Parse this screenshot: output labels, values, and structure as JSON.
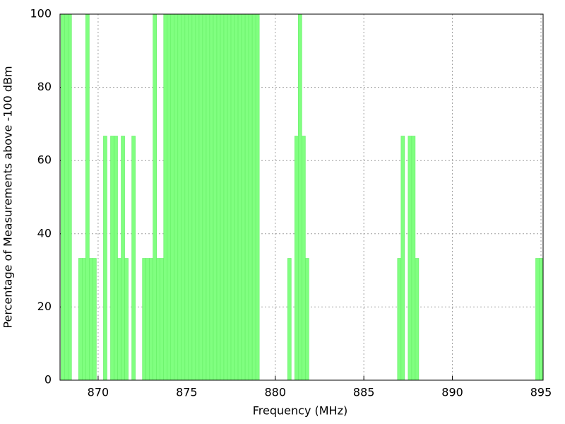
{
  "chart_data": {
    "type": "bar",
    "xlabel": "Frequency (MHz)",
    "ylabel": "Percentage of Measurements above -100 dBm",
    "x": [
      868.0,
      868.2,
      868.4,
      869.0,
      869.2,
      869.4,
      869.6,
      869.8,
      870.4,
      870.8,
      871.0,
      871.2,
      871.4,
      871.6,
      872.0,
      872.6,
      872.8,
      873.0,
      873.2,
      873.4,
      873.6,
      873.8,
      874.0,
      874.2,
      874.4,
      874.6,
      874.8,
      875.0,
      875.2,
      875.4,
      875.6,
      875.8,
      876.0,
      876.2,
      876.4,
      876.6,
      876.8,
      877.0,
      877.2,
      877.4,
      877.6,
      877.8,
      878.0,
      878.2,
      878.4,
      878.6,
      878.8,
      879.0,
      880.8,
      881.2,
      881.4,
      881.6,
      881.8,
      887.0,
      887.2,
      887.6,
      887.8,
      888.0,
      894.8,
      895.0
    ],
    "values": [
      100,
      100,
      100,
      33.3,
      33.3,
      100,
      33.3,
      33.3,
      66.7,
      66.7,
      66.7,
      33.3,
      66.7,
      33.3,
      66.7,
      33.3,
      33.3,
      33.3,
      100,
      33.3,
      33.3,
      100,
      100,
      100,
      100,
      100,
      100,
      100,
      100,
      100,
      100,
      100,
      100,
      100,
      100,
      100,
      100,
      100,
      100,
      100,
      100,
      100,
      100,
      100,
      100,
      100,
      100,
      100,
      33.3,
      66.7,
      100,
      66.7,
      33.3,
      33.3,
      66.7,
      66.7,
      66.7,
      33.3,
      33.3,
      33.3
    ],
    "color": "#80ff80",
    "xlim": [
      867.85,
      895.12
    ],
    "xticks": [
      870,
      875,
      880,
      885,
      890,
      895
    ],
    "ylim": [
      0,
      100
    ],
    "yticks": [
      0,
      20,
      40,
      60,
      80,
      100
    ],
    "grid": true
  }
}
